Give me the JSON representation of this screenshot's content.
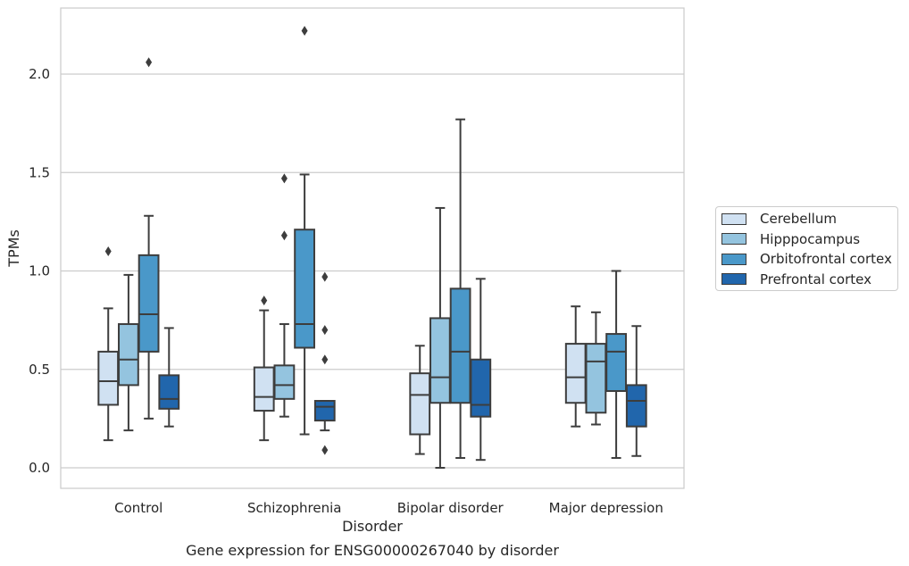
{
  "chart_data": {
    "type": "box",
    "title": "Gene expression for ENSG00000267040 by disorder",
    "xlabel": "Disorder",
    "ylabel": "TPMs",
    "ylim": [
      -0.1,
      2.35
    ],
    "yticks": [
      "0.0",
      "0.5",
      "1.0",
      "1.5",
      "2.0"
    ],
    "grid": true,
    "legend_position": "right",
    "categories": [
      "Control",
      "Schizophrenia",
      "Bipolar disorder",
      "Major depression"
    ],
    "series": [
      {
        "name": "Cerebellum",
        "color": "#d0e1f2",
        "boxes": [
          {
            "whisker_low": 0.14,
            "q1": 0.32,
            "median": 0.44,
            "q3": 0.59,
            "whisker_high": 0.81,
            "outliers": [
              1.1
            ]
          },
          {
            "whisker_low": 0.14,
            "q1": 0.29,
            "median": 0.36,
            "q3": 0.51,
            "whisker_high": 0.8,
            "outliers": [
              0.85
            ]
          },
          {
            "whisker_low": 0.07,
            "q1": 0.17,
            "median": 0.37,
            "q3": 0.48,
            "whisker_high": 0.62,
            "outliers": []
          },
          {
            "whisker_low": 0.21,
            "q1": 0.33,
            "median": 0.46,
            "q3": 0.63,
            "whisker_high": 0.82,
            "outliers": []
          }
        ]
      },
      {
        "name": "Hipppocampus",
        "color": "#94c4df",
        "boxes": [
          {
            "whisker_low": 0.19,
            "q1": 0.42,
            "median": 0.55,
            "q3": 0.73,
            "whisker_high": 0.98,
            "outliers": []
          },
          {
            "whisker_low": 0.26,
            "q1": 0.35,
            "median": 0.42,
            "q3": 0.52,
            "whisker_high": 0.73,
            "outliers": [
              1.18,
              1.47
            ]
          },
          {
            "whisker_low": 0.0,
            "q1": 0.33,
            "median": 0.46,
            "q3": 0.76,
            "whisker_high": 1.32,
            "outliers": []
          },
          {
            "whisker_low": 0.22,
            "q1": 0.28,
            "median": 0.54,
            "q3": 0.63,
            "whisker_high": 0.79,
            "outliers": []
          }
        ]
      },
      {
        "name": "Orbitofrontal cortex",
        "color": "#4a98c9",
        "boxes": [
          {
            "whisker_low": 0.25,
            "q1": 0.59,
            "median": 0.78,
            "q3": 1.08,
            "whisker_high": 1.28,
            "outliers": [
              2.06
            ]
          },
          {
            "whisker_low": 0.17,
            "q1": 0.61,
            "median": 0.73,
            "q3": 1.21,
            "whisker_high": 1.49,
            "outliers": [
              2.22
            ]
          },
          {
            "whisker_low": 0.05,
            "q1": 0.33,
            "median": 0.59,
            "q3": 0.91,
            "whisker_high": 1.77,
            "outliers": []
          },
          {
            "whisker_low": 0.05,
            "q1": 0.39,
            "median": 0.59,
            "q3": 0.68,
            "whisker_high": 1.0,
            "outliers": []
          }
        ]
      },
      {
        "name": "Prefrontal cortex",
        "color": "#2166ac",
        "boxes": [
          {
            "whisker_low": 0.21,
            "q1": 0.3,
            "median": 0.35,
            "q3": 0.47,
            "whisker_high": 0.71,
            "outliers": []
          },
          {
            "whisker_low": 0.19,
            "q1": 0.24,
            "median": 0.31,
            "q3": 0.34,
            "whisker_high": 0.34,
            "outliers": [
              0.09,
              0.55,
              0.7,
              0.97
            ]
          },
          {
            "whisker_low": 0.04,
            "q1": 0.26,
            "median": 0.32,
            "q3": 0.55,
            "whisker_high": 0.96,
            "outliers": []
          },
          {
            "whisker_low": 0.06,
            "q1": 0.21,
            "median": 0.34,
            "q3": 0.42,
            "whisker_high": 0.72,
            "outliers": []
          }
        ]
      }
    ]
  }
}
